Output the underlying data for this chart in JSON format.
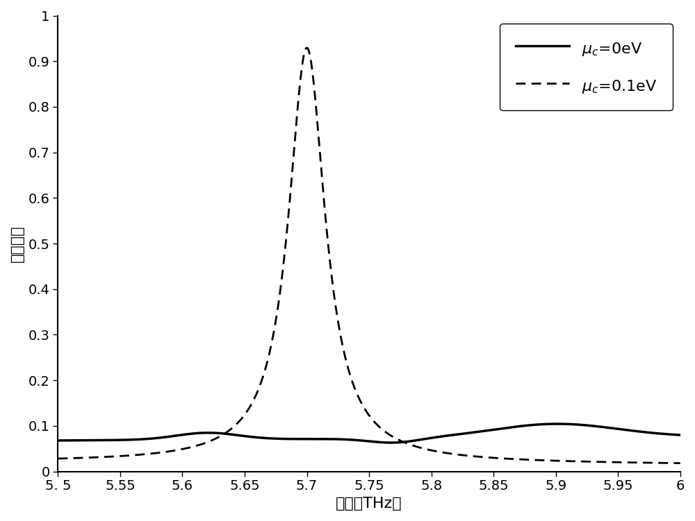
{
  "xmin": 5.5,
  "xmax": 6.0,
  "ymin": 0.0,
  "ymax": 1.0,
  "xticks": [
    5.5,
    5.55,
    5.6,
    5.65,
    5.7,
    5.75,
    5.8,
    5.85,
    5.9,
    5.95,
    6.0
  ],
  "yticks": [
    0,
    0.1,
    0.2,
    0.3,
    0.4,
    0.5,
    0.6,
    0.7,
    0.8,
    0.9,
    1
  ],
  "xlabel": "频率（THz）",
  "ylabel": "传输效率",
  "line1_label": "$\\mu_c$=0eV",
  "line2_label": "$\\mu_c$=0.1eV",
  "line_color": "#000000",
  "figsize": [
    10.0,
    7.51
  ],
  "dpi": 100
}
